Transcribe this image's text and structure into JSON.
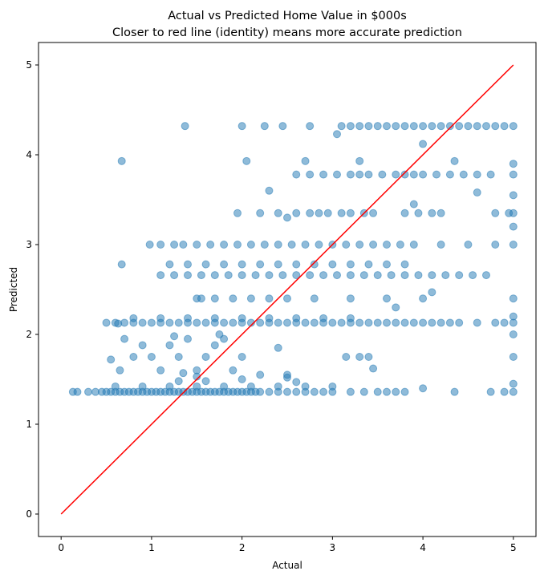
{
  "chart_data": {
    "type": "scatter",
    "title": "Actual vs Predicted Home Value in $000s",
    "subtitle": "Closer to red line (identity) means more accurate prediction",
    "xlabel": "Actual",
    "ylabel": "Predicted",
    "xlim": [
      -0.25,
      5.25
    ],
    "ylim": [
      -0.25,
      5.25
    ],
    "xticks": [
      0,
      1,
      2,
      3,
      4,
      5
    ],
    "yticks": [
      0,
      1,
      2,
      3,
      4,
      5
    ],
    "grid": false,
    "colors": {
      "points": "#1f77b4",
      "identity_line": "#ff0000"
    },
    "point_alpha": 0.5,
    "identity_line": {
      "from": [
        0,
        0
      ],
      "to": [
        5,
        5
      ]
    },
    "points": [
      [
        0.13,
        1.36
      ],
      [
        0.18,
        1.36
      ],
      [
        0.3,
        1.36
      ],
      [
        0.38,
        1.36
      ],
      [
        0.45,
        1.36
      ],
      [
        0.5,
        1.36
      ],
      [
        0.55,
        1.36
      ],
      [
        0.6,
        1.36
      ],
      [
        0.65,
        1.36
      ],
      [
        0.7,
        1.36
      ],
      [
        0.75,
        1.36
      ],
      [
        0.8,
        1.36
      ],
      [
        0.85,
        1.36
      ],
      [
        0.9,
        1.36
      ],
      [
        0.95,
        1.36
      ],
      [
        1.0,
        1.36
      ],
      [
        1.05,
        1.36
      ],
      [
        1.1,
        1.36
      ],
      [
        1.15,
        1.36
      ],
      [
        1.2,
        1.36
      ],
      [
        1.25,
        1.36
      ],
      [
        1.3,
        1.36
      ],
      [
        1.35,
        1.36
      ],
      [
        1.4,
        1.36
      ],
      [
        1.45,
        1.36
      ],
      [
        1.5,
        1.36
      ],
      [
        1.55,
        1.36
      ],
      [
        1.6,
        1.36
      ],
      [
        1.65,
        1.36
      ],
      [
        1.7,
        1.36
      ],
      [
        1.75,
        1.36
      ],
      [
        1.8,
        1.36
      ],
      [
        1.85,
        1.36
      ],
      [
        1.9,
        1.36
      ],
      [
        1.95,
        1.36
      ],
      [
        2.0,
        1.36
      ],
      [
        2.05,
        1.36
      ],
      [
        2.1,
        1.36
      ],
      [
        2.15,
        1.36
      ],
      [
        2.2,
        1.36
      ],
      [
        2.3,
        1.36
      ],
      [
        2.4,
        1.36
      ],
      [
        2.5,
        1.36
      ],
      [
        2.6,
        1.36
      ],
      [
        2.7,
        1.36
      ],
      [
        2.8,
        1.36
      ],
      [
        2.9,
        1.36
      ],
      [
        3.0,
        1.36
      ],
      [
        3.2,
        1.36
      ],
      [
        3.35,
        1.36
      ],
      [
        3.5,
        1.36
      ],
      [
        3.6,
        1.36
      ],
      [
        3.7,
        1.36
      ],
      [
        3.8,
        1.36
      ],
      [
        4.35,
        1.36
      ],
      [
        4.75,
        1.36
      ],
      [
        4.9,
        1.36
      ],
      [
        5.0,
        1.36
      ],
      [
        0.6,
        1.42
      ],
      [
        0.9,
        1.42
      ],
      [
        1.2,
        1.42
      ],
      [
        1.5,
        1.42
      ],
      [
        1.8,
        1.42
      ],
      [
        2.1,
        1.42
      ],
      [
        2.4,
        1.42
      ],
      [
        2.7,
        1.42
      ],
      [
        3.0,
        1.42
      ],
      [
        1.3,
        1.48
      ],
      [
        1.5,
        1.53
      ],
      [
        1.6,
        1.48
      ],
      [
        2.0,
        1.5
      ],
      [
        2.5,
        1.52
      ],
      [
        2.6,
        1.47
      ],
      [
        4.0,
        1.4
      ],
      [
        5.0,
        1.45
      ],
      [
        0.65,
        1.6
      ],
      [
        0.7,
        1.95
      ],
      [
        0.8,
        1.75
      ],
      [
        0.9,
        1.88
      ],
      [
        1.0,
        1.75
      ],
      [
        1.1,
        1.6
      ],
      [
        1.2,
        1.88
      ],
      [
        1.3,
        1.75
      ],
      [
        1.4,
        1.95
      ],
      [
        1.5,
        1.6
      ],
      [
        1.6,
        1.75
      ],
      [
        1.7,
        1.88
      ],
      [
        1.8,
        1.95
      ],
      [
        1.9,
        1.6
      ],
      [
        2.0,
        1.75
      ],
      [
        2.2,
        1.55
      ],
      [
        2.4,
        1.85
      ],
      [
        2.5,
        1.55
      ],
      [
        3.15,
        1.75
      ],
      [
        3.3,
        1.75
      ],
      [
        3.4,
        1.75
      ],
      [
        3.45,
        1.62
      ],
      [
        0.55,
        1.72
      ],
      [
        1.25,
        1.98
      ],
      [
        1.75,
        2.0
      ],
      [
        1.35,
        1.57
      ],
      [
        5.0,
        1.75
      ],
      [
        5.0,
        2.0
      ],
      [
        0.5,
        2.13
      ],
      [
        0.6,
        2.13
      ],
      [
        0.7,
        2.13
      ],
      [
        0.8,
        2.13
      ],
      [
        0.9,
        2.13
      ],
      [
        1.0,
        2.13
      ],
      [
        1.1,
        2.13
      ],
      [
        1.2,
        2.13
      ],
      [
        1.3,
        2.13
      ],
      [
        1.4,
        2.13
      ],
      [
        1.5,
        2.13
      ],
      [
        1.6,
        2.13
      ],
      [
        1.7,
        2.13
      ],
      [
        1.8,
        2.13
      ],
      [
        1.9,
        2.13
      ],
      [
        2.0,
        2.13
      ],
      [
        2.1,
        2.13
      ],
      [
        2.2,
        2.13
      ],
      [
        2.3,
        2.13
      ],
      [
        2.4,
        2.13
      ],
      [
        2.5,
        2.13
      ],
      [
        2.6,
        2.13
      ],
      [
        2.7,
        2.13
      ],
      [
        2.8,
        2.13
      ],
      [
        2.9,
        2.13
      ],
      [
        3.0,
        2.13
      ],
      [
        3.1,
        2.13
      ],
      [
        3.2,
        2.13
      ],
      [
        3.3,
        2.13
      ],
      [
        3.4,
        2.13
      ],
      [
        3.5,
        2.13
      ],
      [
        3.6,
        2.13
      ],
      [
        3.7,
        2.13
      ],
      [
        3.8,
        2.13
      ],
      [
        3.9,
        2.13
      ],
      [
        4.0,
        2.13
      ],
      [
        4.1,
        2.13
      ],
      [
        4.2,
        2.13
      ],
      [
        4.3,
        2.13
      ],
      [
        4.4,
        2.13
      ],
      [
        4.6,
        2.13
      ],
      [
        4.8,
        2.13
      ],
      [
        4.9,
        2.13
      ],
      [
        5.0,
        2.13
      ],
      [
        0.8,
        2.18
      ],
      [
        1.1,
        2.18
      ],
      [
        1.4,
        2.18
      ],
      [
        1.7,
        2.18
      ],
      [
        2.0,
        2.18
      ],
      [
        2.3,
        2.18
      ],
      [
        2.6,
        2.18
      ],
      [
        2.9,
        2.18
      ],
      [
        3.2,
        2.18
      ],
      [
        0.63,
        2.12
      ],
      [
        5.0,
        2.2
      ],
      [
        1.5,
        2.4
      ],
      [
        1.7,
        2.4
      ],
      [
        1.9,
        2.4
      ],
      [
        2.1,
        2.4
      ],
      [
        2.3,
        2.4
      ],
      [
        2.5,
        2.4
      ],
      [
        2.8,
        2.4
      ],
      [
        3.2,
        2.4
      ],
      [
        3.6,
        2.4
      ],
      [
        4.0,
        2.4
      ],
      [
        1.55,
        2.4
      ],
      [
        3.7,
        2.3
      ],
      [
        4.1,
        2.47
      ],
      [
        5.0,
        2.4
      ],
      [
        1.1,
        2.66
      ],
      [
        1.25,
        2.66
      ],
      [
        1.4,
        2.66
      ],
      [
        1.55,
        2.66
      ],
      [
        1.7,
        2.66
      ],
      [
        1.85,
        2.66
      ],
      [
        2.0,
        2.66
      ],
      [
        2.15,
        2.66
      ],
      [
        2.3,
        2.66
      ],
      [
        2.45,
        2.66
      ],
      [
        2.6,
        2.66
      ],
      [
        2.75,
        2.66
      ],
      [
        2.9,
        2.66
      ],
      [
        3.05,
        2.66
      ],
      [
        3.2,
        2.66
      ],
      [
        3.35,
        2.66
      ],
      [
        3.5,
        2.66
      ],
      [
        3.65,
        2.66
      ],
      [
        3.8,
        2.66
      ],
      [
        3.95,
        2.66
      ],
      [
        4.1,
        2.66
      ],
      [
        4.25,
        2.66
      ],
      [
        4.4,
        2.66
      ],
      [
        4.55,
        2.66
      ],
      [
        4.7,
        2.66
      ],
      [
        1.2,
        2.78
      ],
      [
        1.4,
        2.78
      ],
      [
        1.6,
        2.78
      ],
      [
        1.8,
        2.78
      ],
      [
        2.0,
        2.78
      ],
      [
        2.2,
        2.78
      ],
      [
        2.4,
        2.78
      ],
      [
        2.6,
        2.78
      ],
      [
        2.8,
        2.78
      ],
      [
        3.0,
        2.78
      ],
      [
        3.2,
        2.78
      ],
      [
        3.4,
        2.78
      ],
      [
        3.6,
        2.78
      ],
      [
        3.8,
        2.78
      ],
      [
        0.67,
        2.78
      ],
      [
        0.98,
        3.0
      ],
      [
        1.1,
        3.0
      ],
      [
        1.25,
        3.0
      ],
      [
        1.35,
        3.0
      ],
      [
        1.5,
        3.0
      ],
      [
        1.65,
        3.0
      ],
      [
        1.8,
        3.0
      ],
      [
        1.95,
        3.0
      ],
      [
        2.1,
        3.0
      ],
      [
        2.25,
        3.0
      ],
      [
        2.4,
        3.0
      ],
      [
        2.55,
        3.0
      ],
      [
        2.7,
        3.0
      ],
      [
        2.85,
        3.0
      ],
      [
        3.0,
        3.0
      ],
      [
        3.15,
        3.0
      ],
      [
        3.3,
        3.0
      ],
      [
        3.45,
        3.0
      ],
      [
        3.6,
        3.0
      ],
      [
        3.75,
        3.0
      ],
      [
        3.9,
        3.0
      ],
      [
        4.2,
        3.0
      ],
      [
        4.5,
        3.0
      ],
      [
        4.8,
        3.0
      ],
      [
        5.0,
        3.0
      ],
      [
        5.0,
        3.2
      ],
      [
        1.95,
        3.35
      ],
      [
        2.2,
        3.35
      ],
      [
        2.4,
        3.35
      ],
      [
        2.6,
        3.35
      ],
      [
        2.75,
        3.35
      ],
      [
        2.85,
        3.35
      ],
      [
        2.95,
        3.35
      ],
      [
        3.1,
        3.35
      ],
      [
        3.2,
        3.35
      ],
      [
        3.35,
        3.35
      ],
      [
        3.45,
        3.35
      ],
      [
        3.8,
        3.35
      ],
      [
        3.95,
        3.35
      ],
      [
        4.1,
        3.35
      ],
      [
        4.2,
        3.35
      ],
      [
        4.8,
        3.35
      ],
      [
        4.95,
        3.35
      ],
      [
        5.0,
        3.35
      ],
      [
        2.5,
        3.3
      ],
      [
        3.9,
        3.45
      ],
      [
        2.6,
        3.78
      ],
      [
        2.75,
        3.78
      ],
      [
        2.9,
        3.78
      ],
      [
        3.05,
        3.78
      ],
      [
        3.2,
        3.78
      ],
      [
        3.3,
        3.78
      ],
      [
        3.4,
        3.78
      ],
      [
        3.55,
        3.78
      ],
      [
        3.7,
        3.78
      ],
      [
        3.8,
        3.78
      ],
      [
        3.9,
        3.78
      ],
      [
        4.0,
        3.78
      ],
      [
        4.15,
        3.78
      ],
      [
        4.3,
        3.78
      ],
      [
        4.45,
        3.78
      ],
      [
        4.6,
        3.78
      ],
      [
        4.75,
        3.78
      ],
      [
        5.0,
        3.78
      ],
      [
        2.3,
        3.6
      ],
      [
        4.6,
        3.58
      ],
      [
        5.0,
        3.55
      ],
      [
        0.67,
        3.93
      ],
      [
        2.05,
        3.93
      ],
      [
        2.7,
        3.93
      ],
      [
        3.3,
        3.93
      ],
      [
        4.35,
        3.93
      ],
      [
        5.0,
        3.9
      ],
      [
        4.0,
        4.12
      ],
      [
        3.05,
        4.23
      ],
      [
        1.37,
        4.32
      ],
      [
        2.0,
        4.32
      ],
      [
        2.25,
        4.32
      ],
      [
        2.45,
        4.32
      ],
      [
        2.75,
        4.32
      ],
      [
        3.1,
        4.32
      ],
      [
        3.2,
        4.32
      ],
      [
        3.3,
        4.32
      ],
      [
        3.4,
        4.32
      ],
      [
        3.5,
        4.32
      ],
      [
        3.6,
        4.32
      ],
      [
        3.7,
        4.32
      ],
      [
        3.8,
        4.32
      ],
      [
        3.9,
        4.32
      ],
      [
        4.0,
        4.32
      ],
      [
        4.1,
        4.32
      ],
      [
        4.2,
        4.32
      ],
      [
        4.3,
        4.32
      ],
      [
        4.4,
        4.32
      ],
      [
        4.5,
        4.32
      ],
      [
        4.6,
        4.32
      ],
      [
        4.7,
        4.32
      ],
      [
        4.8,
        4.32
      ],
      [
        4.9,
        4.32
      ],
      [
        5.0,
        4.32
      ]
    ]
  }
}
